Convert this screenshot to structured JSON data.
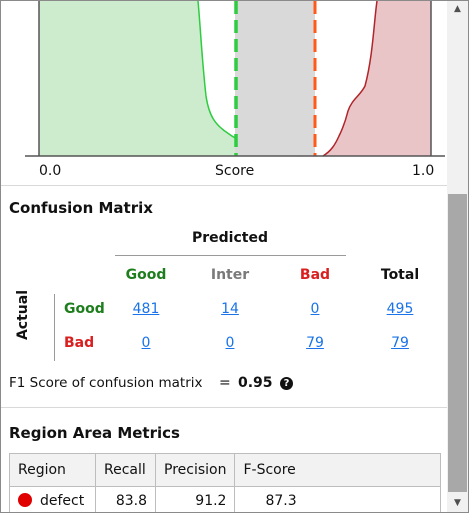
{
  "chart": {
    "x_min_label": "0.0",
    "x_label": "Score",
    "x_max_label": "1.0",
    "colors": {
      "good": "#2ecc40",
      "bad": "#b0242a",
      "threshold_low": "#2ecc40",
      "threshold_high": "#ff5a1a",
      "inter_band": "#d9d9d9"
    },
    "thresholds": [
      0.5,
      0.7
    ]
  },
  "confusion": {
    "title": "Confusion Matrix",
    "predicted_label": "Predicted",
    "actual_label": "Actual",
    "col_headers": [
      "Good",
      "Inter",
      "Bad",
      "Total"
    ],
    "rows": [
      {
        "label": "Good",
        "values": [
          "481",
          "14",
          "0",
          "495"
        ]
      },
      {
        "label": "Bad",
        "values": [
          "0",
          "0",
          "79",
          "79"
        ]
      }
    ],
    "f1_label": "F1 Score of confusion matrix",
    "f1_eq": "=",
    "f1_value": "0.95",
    "help_icon": "question-circle-icon"
  },
  "region": {
    "title": "Region Area Metrics",
    "headers": [
      "Region",
      "Recall",
      "Precision",
      "F-Score"
    ],
    "rows": [
      {
        "name": "defect",
        "color": "#e00000",
        "recall": "83.8",
        "precision": "91.2",
        "fscore": "87.3"
      }
    ]
  },
  "scrollbar": {
    "up_icon": "scroll-up-icon",
    "down_icon": "scroll-down-icon"
  }
}
